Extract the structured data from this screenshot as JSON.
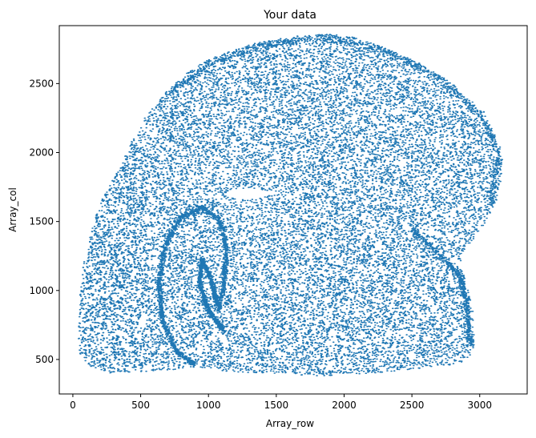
{
  "chart_data": {
    "type": "scatter",
    "title": "Your data",
    "xlabel": "Array_row",
    "ylabel": "Array_col",
    "xlim": [
      -100,
      3350
    ],
    "ylim": [
      250,
      2920
    ],
    "xticks": [
      0,
      500,
      1000,
      1500,
      2000,
      2500,
      3000
    ],
    "yticks": [
      500,
      1000,
      1500,
      2000,
      2500
    ],
    "grid": false,
    "marker_color": "#1f77b4",
    "outline": [
      [
        40,
        740
      ],
      [
        55,
        1000
      ],
      [
        80,
        1230
      ],
      [
        150,
        1500
      ],
      [
        230,
        1700
      ],
      [
        320,
        1850
      ],
      [
        420,
        2050
      ],
      [
        520,
        2240
      ],
      [
        650,
        2400
      ],
      [
        800,
        2550
      ],
      [
        1000,
        2680
      ],
      [
        1300,
        2780
      ],
      [
        1600,
        2840
      ],
      [
        1850,
        2860
      ],
      [
        2050,
        2840
      ],
      [
        2300,
        2760
      ],
      [
        2550,
        2650
      ],
      [
        2800,
        2500
      ],
      [
        2980,
        2300
      ],
      [
        3100,
        2150
      ],
      [
        3170,
        1950
      ],
      [
        3140,
        1700
      ],
      [
        3020,
        1450
      ],
      [
        2850,
        1250
      ],
      [
        2900,
        1050
      ],
      [
        2950,
        850
      ],
      [
        2960,
        600
      ],
      [
        2900,
        470
      ],
      [
        2600,
        440
      ],
      [
        2200,
        400
      ],
      [
        1800,
        380
      ],
      [
        1500,
        400
      ],
      [
        1150,
        410
      ],
      [
        900,
        450
      ],
      [
        700,
        420
      ],
      [
        450,
        410
      ],
      [
        250,
        400
      ],
      [
        110,
        450
      ],
      [
        40,
        560
      ]
    ],
    "holes": [
      {
        "name": "ventricle",
        "cx": 1280,
        "cy": 1700,
        "rx": 160,
        "ry": 40
      }
    ],
    "bands": [
      {
        "name": "hippocampus-outer",
        "points": [
          [
            900,
            460
          ],
          [
            760,
            560
          ],
          [
            660,
            780
          ],
          [
            630,
            1050
          ],
          [
            680,
            1330
          ],
          [
            790,
            1530
          ],
          [
            950,
            1600
          ],
          [
            1080,
            1510
          ],
          [
            1130,
            1300
          ],
          [
            1110,
            1050
          ],
          [
            1070,
            850
          ]
        ],
        "width": 26,
        "count": 1500
      },
      {
        "name": "hippocampus-inner",
        "points": [
          [
            1120,
            700
          ],
          [
            1000,
            850
          ],
          [
            930,
            1050
          ],
          [
            950,
            1230
          ],
          [
            1010,
            1100
          ],
          [
            1060,
            900
          ]
        ],
        "width": 22,
        "count": 1000
      },
      {
        "name": "cortex-rim",
        "points": [
          [
            700,
            2420
          ],
          [
            1000,
            2640
          ],
          [
            1400,
            2780
          ],
          [
            1850,
            2840
          ],
          [
            2300,
            2740
          ],
          [
            2700,
            2540
          ],
          [
            3020,
            2260
          ],
          [
            3140,
            1980
          ],
          [
            3080,
            1620
          ]
        ],
        "width": 40,
        "count": 900
      },
      {
        "name": "lateral-edge",
        "points": [
          [
            2500,
            1450
          ],
          [
            2700,
            1260
          ],
          [
            2850,
            1110
          ],
          [
            2900,
            900
          ],
          [
            2930,
            600
          ]
        ],
        "width": 30,
        "count": 500
      }
    ],
    "n_fill_points": 20000,
    "seed": 12345
  }
}
